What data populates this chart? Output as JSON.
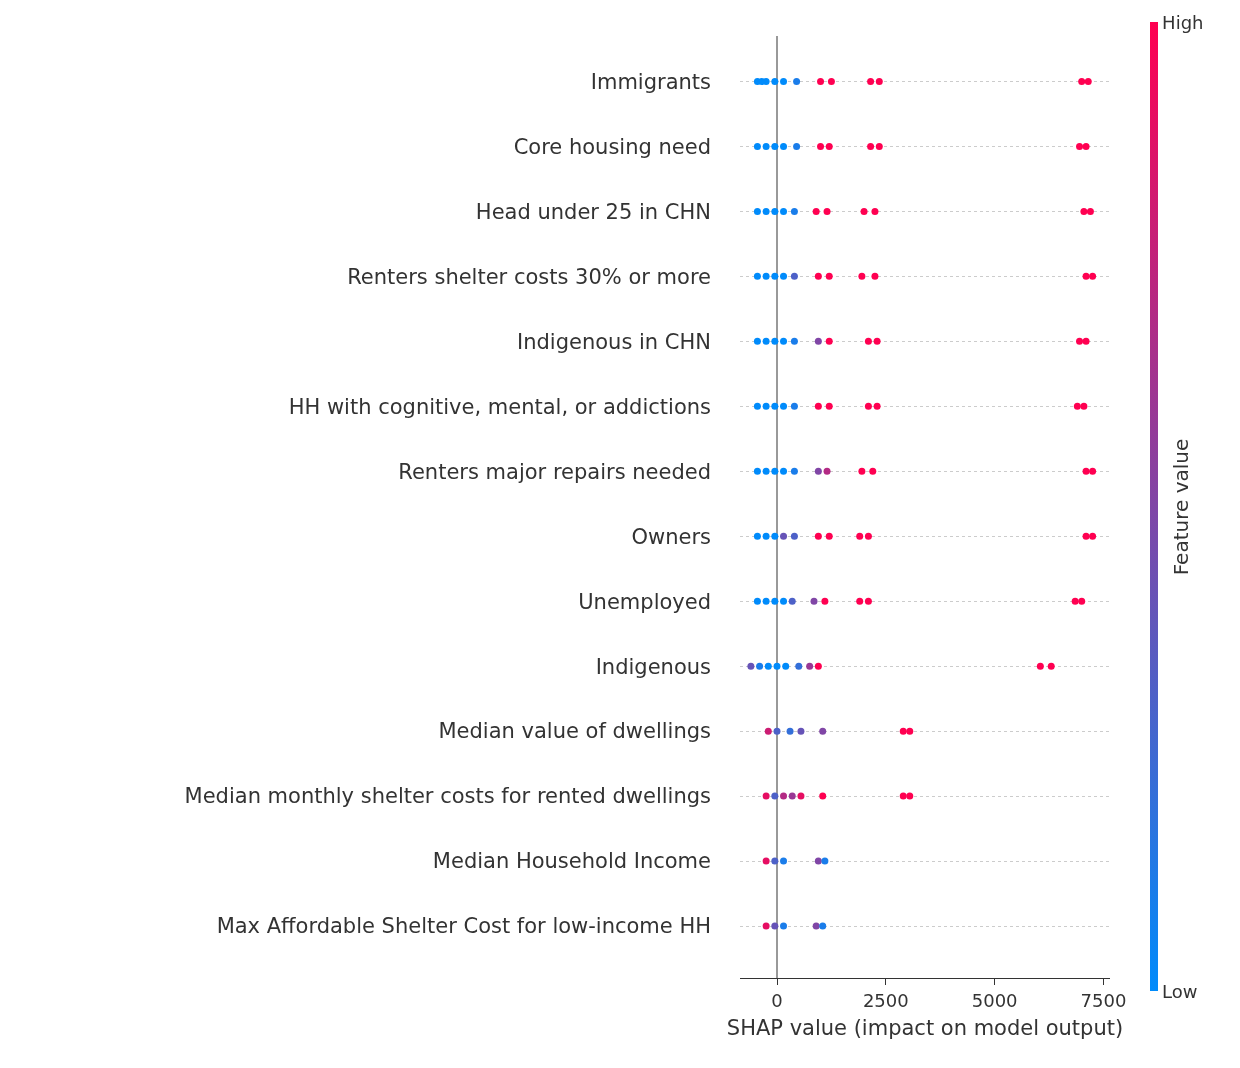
{
  "chart_data": {
    "type": "scatter",
    "orientation": "horizontal",
    "xlabel": "SHAP value (impact on model output)",
    "clabel": "Feature value",
    "categories": [
      "Immigrants",
      "Core housing need",
      "Head under 25 in CHN",
      "Renters shelter costs 30% or more",
      "Indigenous in CHN",
      "HH with cognitive, mental, or addictions",
      "Renters major repairs needed",
      "Owners",
      "Unemployed",
      "Indigenous",
      "Median value of dwellings",
      "Median monthly shelter costs for rented dwellings",
      "Median Household Income",
      "Max Affordable Shelter Cost for low-income HH"
    ],
    "xlim": [
      -850,
      7650
    ],
    "xticks": [
      0,
      2500,
      5000,
      7500
    ],
    "grid": "y",
    "marker": "circle",
    "colors": [
      "#008bfb",
      "#ff0051"
    ],
    "clim": [
      0,
      1
    ],
    "cticks": [
      {
        "value": 0,
        "label": "Low"
      },
      {
        "value": 1,
        "label": "High"
      }
    ],
    "ref_lines": [
      {
        "axis": "x",
        "value": 0,
        "color": "#999999"
      }
    ],
    "series": [
      {
        "x": [
          "Immigrants",
          "Immigrants",
          "Immigrants",
          "Immigrants",
          "Immigrants",
          "Immigrants",
          "Immigrants",
          "Immigrants",
          "Immigrants",
          "Immigrants",
          "Immigrants",
          "Immigrants"
        ],
        "values": [
          -450,
          -250,
          -50,
          150,
          450,
          1000,
          1250,
          2150,
          2350,
          7000,
          7150,
          -350
        ],
        "colors": [
          "#008bfb",
          "#008bfb",
          "#008bfb",
          "#008bfb",
          "#1a7dea",
          "#ff0051",
          "#ff0051",
          "#ff0051",
          "#ff0051",
          "#ff0051",
          "#ff0051",
          "#008bfb"
        ]
      },
      {
        "x": [
          "Core housing need",
          "Core housing need",
          "Core housing need",
          "Core housing need",
          "Core housing need",
          "Core housing need",
          "Core housing need",
          "Core housing need",
          "Core housing need",
          "Core housing need",
          "Core housing need"
        ],
        "values": [
          -450,
          -250,
          -50,
          150,
          450,
          1000,
          1200,
          2150,
          2350,
          6950,
          7100
        ],
        "colors": [
          "#008bfb",
          "#008bfb",
          "#008bfb",
          "#008bfb",
          "#1a7dea",
          "#ff0051",
          "#ff0051",
          "#ff0051",
          "#ff0051",
          "#ff0051",
          "#ff0051"
        ]
      },
      {
        "x": [
          "Head under 25 in CHN",
          "Head under 25 in CHN",
          "Head under 25 in CHN",
          "Head under 25 in CHN",
          "Head under 25 in CHN",
          "Head under 25 in CHN",
          "Head under 25 in CHN",
          "Head under 25 in CHN",
          "Head under 25 in CHN",
          "Head under 25 in CHN",
          "Head under 25 in CHN"
        ],
        "values": [
          -450,
          -250,
          -50,
          150,
          400,
          900,
          1150,
          2000,
          2250,
          7050,
          7200
        ],
        "colors": [
          "#008bfb",
          "#008bfb",
          "#008bfb",
          "#008bfb",
          "#1a7dea",
          "#ff0051",
          "#ff0051",
          "#ff0051",
          "#ff0051",
          "#ff0051",
          "#ff0051"
        ]
      },
      {
        "x": [
          "Renters shelter costs 30% or more",
          "Renters shelter costs 30% or more",
          "Renters shelter costs 30% or more",
          "Renters shelter costs 30% or more",
          "Renters shelter costs 30% or more",
          "Renters shelter costs 30% or more",
          "Renters shelter costs 30% or more",
          "Renters shelter costs 30% or more",
          "Renters shelter costs 30% or more",
          "Renters shelter costs 30% or more",
          "Renters shelter costs 30% or more"
        ],
        "values": [
          -450,
          -250,
          -50,
          150,
          400,
          950,
          1200,
          1950,
          2250,
          7100,
          7250
        ],
        "colors": [
          "#008bfb",
          "#008bfb",
          "#008bfb",
          "#008bfb",
          "#4d61c8",
          "#ff0051",
          "#ff0051",
          "#ff0051",
          "#ff0051",
          "#ff0051",
          "#ff0051"
        ]
      },
      {
        "x": [
          "Indigenous in CHN",
          "Indigenous in CHN",
          "Indigenous in CHN",
          "Indigenous in CHN",
          "Indigenous in CHN",
          "Indigenous in CHN",
          "Indigenous in CHN",
          "Indigenous in CHN",
          "Indigenous in CHN",
          "Indigenous in CHN",
          "Indigenous in CHN"
        ],
        "values": [
          -450,
          -250,
          -50,
          150,
          400,
          950,
          1200,
          2100,
          2300,
          6950,
          7100
        ],
        "colors": [
          "#008bfb",
          "#008bfb",
          "#008bfb",
          "#008bfb",
          "#1a7dea",
          "#8046a6",
          "#ff0051",
          "#ff0051",
          "#ff0051",
          "#ff0051",
          "#ff0051"
        ]
      },
      {
        "x": [
          "HH with cognitive, mental, or addictions",
          "HH with cognitive, mental, or addictions",
          "HH with cognitive, mental, or addictions",
          "HH with cognitive, mental, or addictions",
          "HH with cognitive, mental, or addictions",
          "HH with cognitive, mental, or addictions",
          "HH with cognitive, mental, or addictions",
          "HH with cognitive, mental, or addictions",
          "HH with cognitive, mental, or addictions",
          "HH with cognitive, mental, or addictions",
          "HH with cognitive, mental, or addictions"
        ],
        "values": [
          -450,
          -250,
          -50,
          150,
          400,
          950,
          1200,
          2100,
          2300,
          6900,
          7050
        ],
        "colors": [
          "#008bfb",
          "#008bfb",
          "#008bfb",
          "#008bfb",
          "#1a7dea",
          "#ff0051",
          "#ff0051",
          "#ff0051",
          "#ff0051",
          "#ff0051",
          "#ff0051"
        ]
      },
      {
        "x": [
          "Renters major repairs needed",
          "Renters major repairs needed",
          "Renters major repairs needed",
          "Renters major repairs needed",
          "Renters major repairs needed",
          "Renters major repairs needed",
          "Renters major repairs needed",
          "Renters major repairs needed",
          "Renters major repairs needed",
          "Renters major repairs needed",
          "Renters major repairs needed"
        ],
        "values": [
          -450,
          -250,
          -50,
          150,
          400,
          950,
          1150,
          1950,
          2200,
          7100,
          7250
        ],
        "colors": [
          "#008bfb",
          "#008bfb",
          "#008bfb",
          "#008bfb",
          "#1a7dea",
          "#8046a6",
          "#b32a84",
          "#ff0051",
          "#ff0051",
          "#ff0051",
          "#ff0051"
        ]
      },
      {
        "x": [
          "Owners",
          "Owners",
          "Owners",
          "Owners",
          "Owners",
          "Owners",
          "Owners",
          "Owners",
          "Owners",
          "Owners",
          "Owners"
        ],
        "values": [
          -450,
          -250,
          -50,
          150,
          400,
          950,
          1200,
          1900,
          2100,
          7100,
          7250
        ],
        "colors": [
          "#008bfb",
          "#008bfb",
          "#008bfb",
          "#6653b7",
          "#4d61c8",
          "#ff0051",
          "#ff0051",
          "#ff0051",
          "#ff0051",
          "#ff0051",
          "#ff0051"
        ]
      },
      {
        "x": [
          "Unemployed",
          "Unemployed",
          "Unemployed",
          "Unemployed",
          "Unemployed",
          "Unemployed",
          "Unemployed",
          "Unemployed",
          "Unemployed",
          "Unemployed",
          "Unemployed"
        ],
        "values": [
          -450,
          -250,
          -50,
          150,
          350,
          850,
          1100,
          1900,
          2100,
          6850,
          7000
        ],
        "colors": [
          "#008bfb",
          "#008bfb",
          "#008bfb",
          "#008bfb",
          "#4d61c8",
          "#8046a6",
          "#ff0051",
          "#ff0051",
          "#ff0051",
          "#ff0051",
          "#ff0051"
        ]
      },
      {
        "x": [
          "Indigenous",
          "Indigenous",
          "Indigenous",
          "Indigenous",
          "Indigenous",
          "Indigenous",
          "Indigenous",
          "Indigenous",
          "Indigenous",
          "Indigenous"
        ],
        "values": [
          -600,
          -400,
          -200,
          0,
          200,
          500,
          750,
          950,
          6050,
          6300
        ],
        "colors": [
          "#6653b7",
          "#1a7dea",
          "#008bfb",
          "#008bfb",
          "#008bfb",
          "#336fd9",
          "#993895",
          "#ff0051",
          "#ff0051",
          "#ff0051"
        ]
      },
      {
        "x": [
          "Median value of dwellings",
          "Median value of dwellings",
          "Median value of dwellings",
          "Median value of dwellings",
          "Median value of dwellings",
          "Median value of dwellings",
          "Median value of dwellings"
        ],
        "values": [
          -200,
          0,
          300,
          550,
          1050,
          2900,
          3050
        ],
        "colors": [
          "#cc1c73",
          "#4d61c8",
          "#336fd9",
          "#6653b7",
          "#8046a6",
          "#ff0051",
          "#ff0051"
        ]
      },
      {
        "x": [
          "Median monthly shelter costs for rented dwellings",
          "Median monthly shelter costs for rented dwellings",
          "Median monthly shelter costs for rented dwellings",
          "Median monthly shelter costs for rented dwellings",
          "Median monthly shelter costs for rented dwellings",
          "Median monthly shelter costs for rented dwellings",
          "Median monthly shelter costs for rented dwellings",
          "Median monthly shelter costs for rented dwellings"
        ],
        "values": [
          -250,
          -50,
          150,
          350,
          550,
          1050,
          2900,
          3050
        ],
        "colors": [
          "#e60e62",
          "#4d61c8",
          "#b32a84",
          "#993895",
          "#e60e62",
          "#ff0051",
          "#ff0051",
          "#ff0051"
        ]
      },
      {
        "x": [
          "Median Household Income",
          "Median Household Income",
          "Median Household Income",
          "Median Household Income",
          "Median Household Income"
        ],
        "values": [
          -250,
          -50,
          150,
          950,
          1100
        ],
        "colors": [
          "#e60e62",
          "#4d61c8",
          "#1a7dea",
          "#8046a6",
          "#1a7dea"
        ]
      },
      {
        "x": [
          "Max Affordable Shelter Cost for low-income HH",
          "Max Affordable Shelter Cost for low-income HH",
          "Max Affordable Shelter Cost for low-income HH",
          "Max Affordable Shelter Cost for low-income HH",
          "Max Affordable Shelter Cost for low-income HH"
        ],
        "values": [
          -250,
          -50,
          150,
          900,
          1050
        ],
        "colors": [
          "#e60e62",
          "#6653b7",
          "#1a7dea",
          "#8046a6",
          "#1a7dea"
        ]
      }
    ]
  }
}
